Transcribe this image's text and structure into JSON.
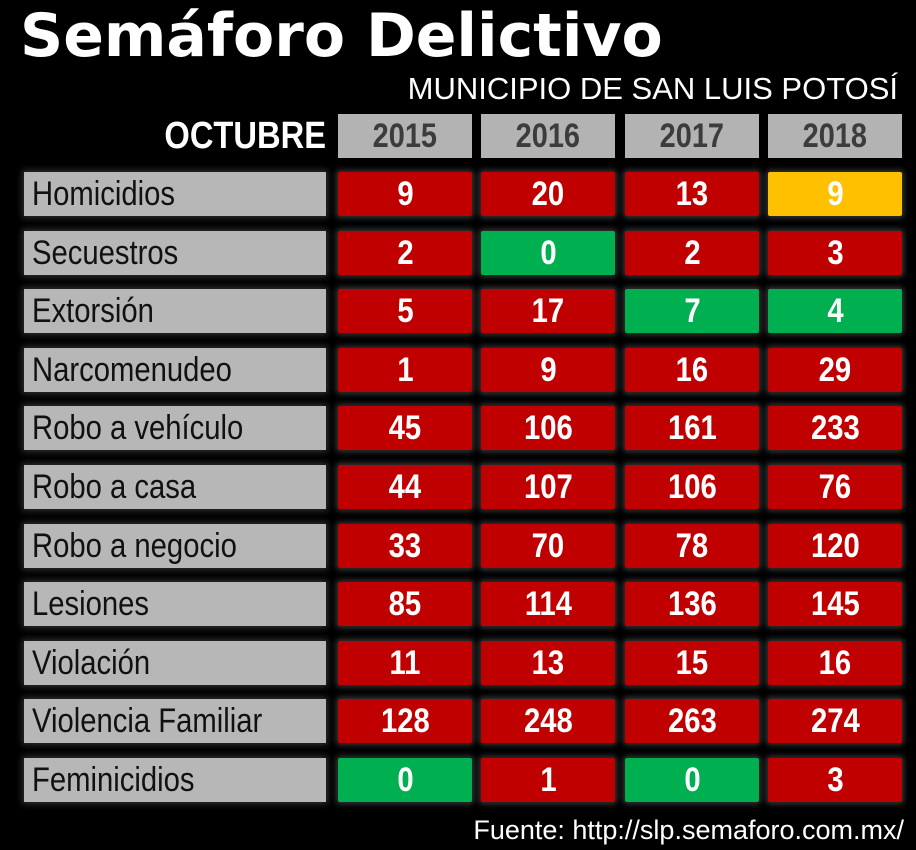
{
  "colors": {
    "red": "#c00000",
    "green": "#00b050",
    "yellow": "#ffc000",
    "header_gray": "#b3b3b3"
  },
  "chart_data": {
    "type": "table",
    "title": "Semáforo Delictivo",
    "subtitle": "MUNICIPIO DE SAN LUIS POTOSÍ",
    "month": "OCTUBRE",
    "columns": [
      "2015",
      "2016",
      "2017",
      "2018"
    ],
    "rows": [
      {
        "label": "Homicidios",
        "values": [
          "9",
          "20",
          "13",
          "9"
        ],
        "colors": [
          "red",
          "red",
          "red",
          "yellow"
        ]
      },
      {
        "label": "Secuestros",
        "values": [
          "2",
          "0",
          "2",
          "3"
        ],
        "colors": [
          "red",
          "green",
          "red",
          "red"
        ]
      },
      {
        "label": "Extorsión",
        "values": [
          "5",
          "17",
          "7",
          "4"
        ],
        "colors": [
          "red",
          "red",
          "green",
          "green"
        ]
      },
      {
        "label": "Narcomenudeo",
        "values": [
          "1",
          "9",
          "16",
          "29"
        ],
        "colors": [
          "red",
          "red",
          "red",
          "red"
        ]
      },
      {
        "label": "Robo a vehículo",
        "values": [
          "45",
          "106",
          "161",
          "233"
        ],
        "colors": [
          "red",
          "red",
          "red",
          "red"
        ]
      },
      {
        "label": "Robo a casa",
        "values": [
          "44",
          "107",
          "106",
          "76"
        ],
        "colors": [
          "red",
          "red",
          "red",
          "red"
        ]
      },
      {
        "label": "Robo a negocio",
        "values": [
          "33",
          "70",
          "78",
          "120"
        ],
        "colors": [
          "red",
          "red",
          "red",
          "red"
        ]
      },
      {
        "label": "Lesiones",
        "values": [
          "85",
          "114",
          "136",
          "145"
        ],
        "colors": [
          "red",
          "red",
          "red",
          "red"
        ]
      },
      {
        "label": "Violación",
        "values": [
          "11",
          "13",
          "15",
          "16"
        ],
        "colors": [
          "red",
          "red",
          "red",
          "red"
        ]
      },
      {
        "label": "Violencia Familiar",
        "values": [
          "128",
          "248",
          "263",
          "274"
        ],
        "colors": [
          "red",
          "red",
          "red",
          "red"
        ]
      },
      {
        "label": "Feminicidios",
        "values": [
          "0",
          "1",
          "0",
          "3"
        ],
        "colors": [
          "green",
          "red",
          "green",
          "red"
        ]
      }
    ],
    "source": "Fuente: http://slp.semaforo.com.mx/"
  }
}
